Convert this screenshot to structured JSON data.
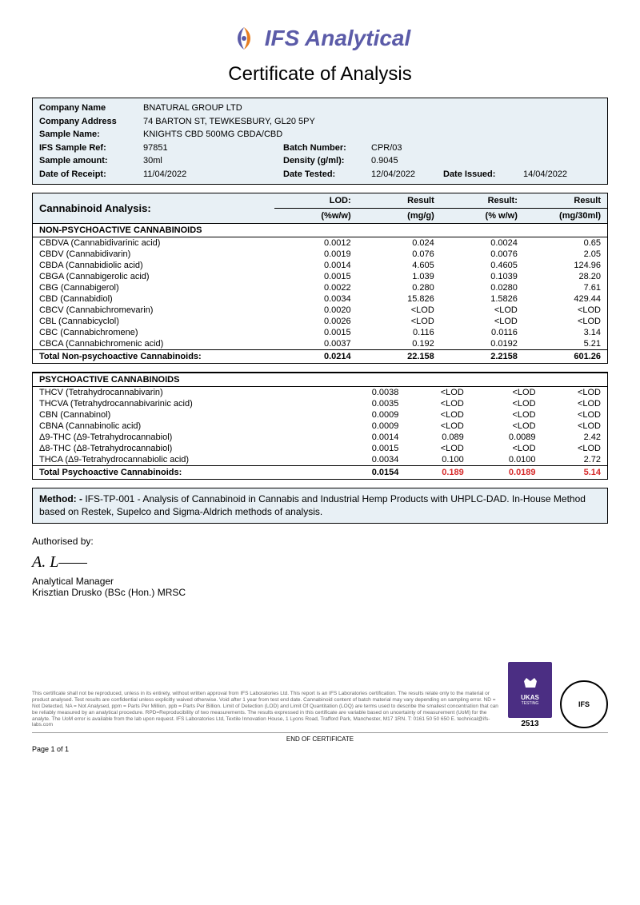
{
  "brand": {
    "name": "IFS Analytical",
    "color": "#5b5ba8"
  },
  "title": "Certificate of Analysis",
  "info": {
    "company_name_label": "Company Name",
    "company_name": "BNATURAL GROUP LTD",
    "company_address_label": "Company Address",
    "company_address": "74 BARTON ST, TEWKESBURY, GL20 5PY",
    "sample_name_label": "Sample Name:",
    "sample_name": "KNIGHTS CBD 500MG CBDA/CBD",
    "sample_ref_label": "IFS Sample Ref:",
    "sample_ref": "97851",
    "batch_label": "Batch Number:",
    "batch": "CPR/03",
    "amount_label": "Sample amount:",
    "amount": "30ml",
    "density_label": "Density (g/ml):",
    "density": "0.9045",
    "receipt_label": "Date of Receipt:",
    "receipt": "11/04/2022",
    "tested_label": "Date Tested:",
    "tested": "12/04/2022",
    "issued_label": "Date Issued:",
    "issued": "14/04/2022"
  },
  "analysis": {
    "heading": "Cannabinoid Analysis:",
    "cols": {
      "lod_l1": "LOD:",
      "lod_l2": "(%w/w)",
      "r1_l1": "Result",
      "r1_l2": "(mg/g)",
      "r2_l1": "Result:",
      "r2_l2": "(% w/w)",
      "r3_l1": "Result",
      "r3_l2": "(mg/30ml)"
    },
    "non_psycho_header": "NON-PSYCHOACTIVE CANNABINOIDS",
    "non_psycho": [
      {
        "name": "CBDVA (Cannabidivarinic acid)",
        "lod": "0.0012",
        "mg_g": "0.024",
        "pct": "0.0024",
        "mg30": "0.65"
      },
      {
        "name": "CBDV (Cannabidivarin)",
        "lod": "0.0019",
        "mg_g": "0.076",
        "pct": "0.0076",
        "mg30": "2.05"
      },
      {
        "name": "CBDA (Cannabidiolic acid)",
        "lod": "0.0014",
        "mg_g": "4.605",
        "pct": "0.4605",
        "mg30": "124.96"
      },
      {
        "name": "CBGA (Cannabigerolic acid)",
        "lod": "0.0015",
        "mg_g": "1.039",
        "pct": "0.1039",
        "mg30": "28.20"
      },
      {
        "name": "CBG (Cannabigerol)",
        "lod": "0.0022",
        "mg_g": "0.280",
        "pct": "0.0280",
        "mg30": "7.61"
      },
      {
        "name": "CBD (Cannabidiol)",
        "lod": "0.0034",
        "mg_g": "15.826",
        "pct": "1.5826",
        "mg30": "429.44"
      },
      {
        "name": "CBCV (Cannabichromevarin)",
        "lod": "0.0020",
        "mg_g": "<LOD",
        "pct": "<LOD",
        "mg30": "<LOD"
      },
      {
        "name": "CBL (Cannabicyclol)",
        "lod": "0.0026",
        "mg_g": "<LOD",
        "pct": "<LOD",
        "mg30": "<LOD"
      },
      {
        "name": "CBC (Cannabichromene)",
        "lod": "0.0015",
        "mg_g": "0.116",
        "pct": "0.0116",
        "mg30": "3.14"
      },
      {
        "name": "CBCA (Cannabichromenic acid)",
        "lod": "0.0037",
        "mg_g": "0.192",
        "pct": "0.0192",
        "mg30": "5.21"
      }
    ],
    "non_psycho_total": {
      "name": "Total Non-psychoactive Cannabinoids:",
      "lod": "0.0214",
      "mg_g": "22.158",
      "pct": "2.2158",
      "mg30": "601.26"
    },
    "psycho_header": "PSYCHOACTIVE CANNABINOIDS",
    "psycho": [
      {
        "name": "THCV (Tetrahydrocannabivarin)",
        "lod": "0.0038",
        "mg_g": "<LOD",
        "pct": "<LOD",
        "mg30": "<LOD"
      },
      {
        "name": "THCVA (Tetrahydrocannabivarinic acid)",
        "lod": "0.0035",
        "mg_g": "<LOD",
        "pct": "<LOD",
        "mg30": "<LOD"
      },
      {
        "name": "CBN (Cannabinol)",
        "lod": "0.0009",
        "mg_g": "<LOD",
        "pct": "<LOD",
        "mg30": "<LOD"
      },
      {
        "name": "CBNA (Cannabinolic acid)",
        "lod": "0.0009",
        "mg_g": "<LOD",
        "pct": "<LOD",
        "mg30": "<LOD"
      },
      {
        "name": "Δ9-THC (Δ9-Tetrahydrocannabiol)",
        "lod": "0.0014",
        "mg_g": "0.089",
        "pct": "0.0089",
        "mg30": "2.42"
      },
      {
        "name": "Δ8-THC (Δ8-Tetrahydrocannabiol)",
        "lod": "0.0015",
        "mg_g": "<LOD",
        "pct": "<LOD",
        "mg30": "<LOD"
      },
      {
        "name": "THCA (Δ9-Tetrahydrocannabiolic acid)",
        "lod": "0.0034",
        "mg_g": "0.100",
        "pct": "0.0100",
        "mg30": "2.72"
      }
    ],
    "psycho_total": {
      "name": "Total Psychoactive Cannabinoids:",
      "lod": "0.0154",
      "mg_g": "0.189",
      "pct": "0.0189",
      "mg30": "5.14"
    }
  },
  "method": {
    "label": "Method: -",
    "text": "IFS-TP-001 - Analysis of Cannabinoid in Cannabis and Industrial Hemp Products with UHPLC-DAD. In-House Method based on Restek, Supelco and Sigma-Aldrich methods of analysis."
  },
  "auth": {
    "label": "Authorised by:",
    "role": "Analytical Manager",
    "name": "Krisztian Drusko (BSc (Hon.) MRSC"
  },
  "disclaimer": "This certificate shall not be reproduced, unless in its entirety, without written approval from IFS Laboratories Ltd. This report is an IFS Laboratories certification. The results relate only to the material or product analysed. Test results are confidential unless explicitly waived otherwise. Void after 1 year from test end date. Cannabinoid content of batch material may vary depending on sampling error. ND = Not Detected, NA = Not Analysed, ppm = Parts Per Million, ppb = Parts Per Billion. Limit of Detection (LOD) and Limit Of Quantitation (LOQ) are terms used to describe the smallest concentration that can be reliably measured by an analytical procedure. RPD=Reproducibility of two measurements. The results expressed in this certificate are variable based on uncertainty of measurement (UoM) for the analyte. The UoM error is available from the lab upon request. IFS Laboratories Ltd, Textile Innovation House, 1 Lyons Road, Trafford Park, Manchester, M17 1RN. T: 0161 50 50 650 E. technical@ifs-labs.com",
  "ukas_number": "2513",
  "end_text": "END OF CERTIFICATE",
  "page": "Page 1 of 1"
}
